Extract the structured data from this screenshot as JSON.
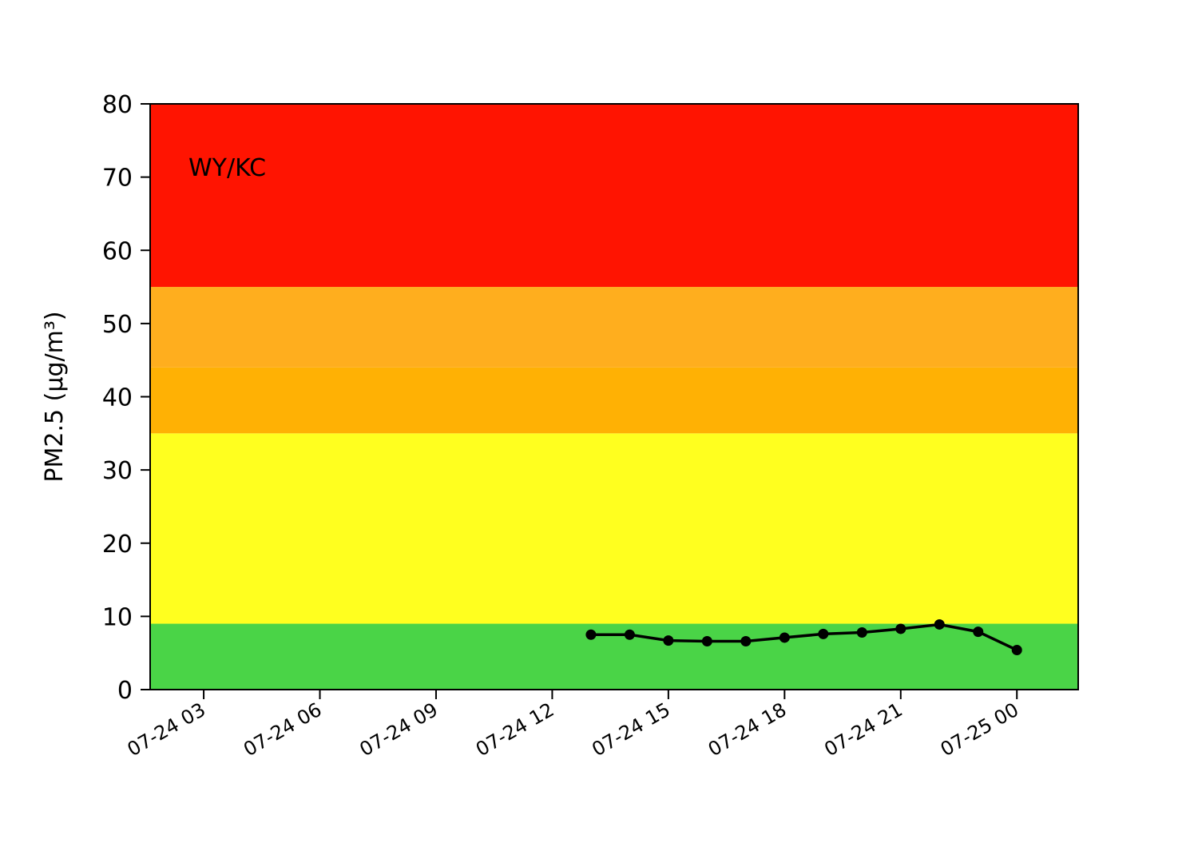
{
  "chart_data": {
    "type": "line",
    "annotation": "WY/KC",
    "ylabel": "PM2.5 (µg/m³)",
    "ylim": [
      0,
      80
    ],
    "y_ticks": [
      0,
      10,
      20,
      30,
      40,
      50,
      60,
      70,
      80
    ],
    "x_range": [
      "07-24 01:37",
      "07-25 01:35"
    ],
    "x_ticks": [
      "07-24 03",
      "07-24 06",
      "07-24 09",
      "07-24 12",
      "07-24 15",
      "07-24 18",
      "07-24 21",
      "07-25 00"
    ],
    "x_tick_times": [
      "07-24 03:00",
      "07-24 06:00",
      "07-24 09:00",
      "07-24 12:00",
      "07-24 15:00",
      "07-24 18:00",
      "07-24 21:00",
      "07-25 00:00"
    ],
    "bands": [
      {
        "from": 0,
        "to": 9,
        "color": "#4ad447"
      },
      {
        "from": 9,
        "to": 35,
        "color": "#ffff1f"
      },
      {
        "from": 35,
        "to": 44,
        "color": "#ffb104"
      },
      {
        "from": 44,
        "to": 55,
        "color": "#ffae1e"
      },
      {
        "from": 55,
        "to": 80,
        "color": "#ff1401"
      }
    ],
    "series": [
      {
        "color": "#000000",
        "marker": "circle",
        "x": [
          "07-24 13:00",
          "07-24 14:00",
          "07-24 15:00",
          "07-24 16:00",
          "07-24 17:00",
          "07-24 18:00",
          "07-24 19:00",
          "07-24 20:00",
          "07-24 21:00",
          "07-24 22:00",
          "07-24 23:00",
          "07-25 00:00"
        ],
        "y": [
          7.5,
          7.5,
          6.7,
          6.6,
          6.6,
          7.1,
          7.6,
          7.8,
          8.3,
          8.9,
          7.9,
          5.4
        ]
      }
    ]
  }
}
